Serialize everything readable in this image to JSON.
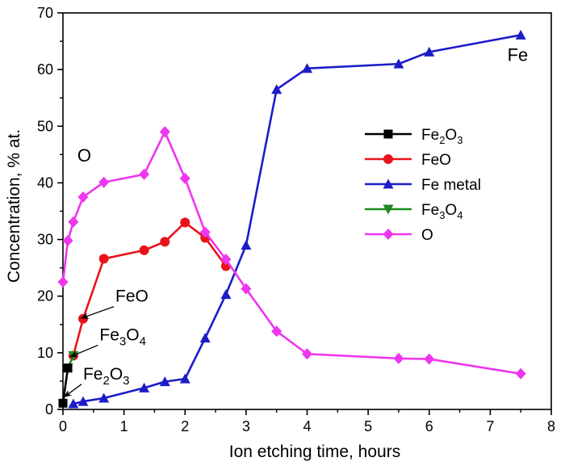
{
  "chart_data": {
    "type": "line",
    "xlabel": "Ion etching time, hours",
    "ylabel": "Concentration, % at.",
    "xlim": [
      0,
      8
    ],
    "ylim": [
      0,
      70
    ],
    "xticks": [
      0,
      1,
      2,
      3,
      4,
      5,
      6,
      7,
      8
    ],
    "yticks": [
      0,
      10,
      20,
      30,
      40,
      50,
      60,
      70
    ],
    "grid": false,
    "legend_position": "center-right",
    "series": [
      {
        "name": "Fe2O3",
        "legend_base": "Fe",
        "legend_sub": "2",
        "legend_mid": "O",
        "legend_sub2": "3",
        "color": "#000000",
        "marker": "square",
        "x": [
          0,
          0.08
        ],
        "y": [
          1.1,
          7.3
        ]
      },
      {
        "name": "FeO",
        "legend_base": "FeO",
        "legend_sub": "",
        "legend_mid": "",
        "legend_sub2": "",
        "color": "#e8141b",
        "marker": "circle",
        "x": [
          0.17,
          0.33,
          0.67,
          1.33,
          1.67,
          2.0,
          2.33,
          2.67
        ],
        "y": [
          9.5,
          16.0,
          26.6,
          28.1,
          29.6,
          33.0,
          30.3,
          25.3
        ]
      },
      {
        "name": "Fe metal",
        "legend_base": "Fe metal",
        "legend_sub": "",
        "legend_mid": "",
        "legend_sub2": "",
        "color": "#1c1cc8",
        "marker": "triangle-up",
        "x": [
          0.17,
          0.33,
          0.67,
          1.33,
          1.67,
          2.0,
          2.33,
          2.67,
          3.0,
          3.5,
          4.0,
          5.5,
          6.0,
          7.5
        ],
        "y": [
          1.0,
          1.4,
          2.0,
          3.8,
          4.9,
          5.4,
          12.6,
          20.3,
          29.0,
          56.5,
          60.2,
          61.0,
          63.1,
          66.1
        ]
      },
      {
        "name": "Fe3O4",
        "legend_base": " Fe",
        "legend_sub": "3",
        "legend_mid": "O",
        "legend_sub2": "4",
        "color": "#1e8a1e",
        "marker": "triangle-down",
        "x": [
          0.08,
          0.17
        ],
        "y": [
          7.3,
          9.5
        ]
      },
      {
        "name": "O",
        "legend_base": "O",
        "legend_sub": "",
        "legend_mid": "",
        "legend_sub2": "",
        "color": "#ee36ee",
        "marker": "diamond",
        "x": [
          0,
          0.08,
          0.17,
          0.33,
          0.67,
          1.33,
          1.67,
          2.0,
          2.33,
          2.67,
          3.0,
          3.5,
          4.0,
          5.5,
          6.0,
          7.5
        ],
        "y": [
          22.5,
          29.8,
          33.1,
          37.5,
          40.1,
          41.5,
          49.0,
          40.8,
          31.3,
          26.5,
          21.3,
          13.8,
          9.8,
          9.0,
          8.9,
          6.3
        ]
      }
    ],
    "annotations": [
      {
        "id": "o-label",
        "text": "O",
        "x": 0.35,
        "y": 43.8,
        "size": 22,
        "arrow": false
      },
      {
        "id": "fe-label",
        "text": "Fe",
        "x": 7.45,
        "y": 61.5,
        "size": 22,
        "arrow": false
      },
      {
        "id": "feo-annotation",
        "text": "FeO",
        "base": "FeO",
        "sub": "",
        "mid": "",
        "sub2": "",
        "x": 0.86,
        "y": 19.0,
        "size": 21,
        "arrow": true,
        "ax": 0.3,
        "ay": 16.1
      },
      {
        "id": "fe3o4-annotation",
        "text": "Fe3O4",
        "base": "Fe",
        "sub": "3",
        "mid": "O",
        "sub2": "4",
        "x": 0.6,
        "y": 12.2,
        "size": 21,
        "arrow": true,
        "ax": 0.12,
        "ay": 9.3
      },
      {
        "id": "fe2o3-annotation",
        "text": "Fe2O3",
        "base": "Fe",
        "sub": "2",
        "mid": "O",
        "sub2": "3",
        "x": 0.33,
        "y": 5.3,
        "size": 21,
        "arrow": true,
        "ax": 0.02,
        "ay": 2.2
      }
    ]
  }
}
